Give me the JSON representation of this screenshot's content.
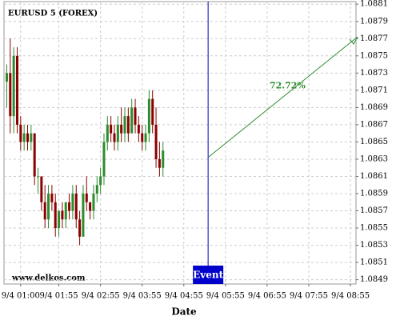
{
  "chart_data": {
    "type": "candlestick",
    "title": "EURUSD 5 (FOREX)",
    "x_label": "Date",
    "watermark": "www.delkos.com",
    "x": [
      40,
      45,
      50,
      55,
      60,
      65,
      70,
      75,
      80,
      85,
      90,
      95,
      100,
      105,
      110,
      115,
      120,
      125,
      130,
      135,
      140,
      145,
      150,
      155,
      160,
      165,
      170,
      175,
      180,
      185,
      190,
      195,
      200,
      205,
      210,
      215,
      220,
      225,
      230,
      235,
      240,
      245,
      250,
      255,
      260,
      265
    ],
    "open": [
      1.0872,
      1.0873,
      1.0868,
      1.0875,
      1.0867,
      1.0865,
      1.0866,
      1.0865,
      1.0866,
      1.0861,
      1.0861,
      1.0858,
      1.0856,
      1.0859,
      1.0858,
      1.0855,
      1.0857,
      1.0856,
      1.0858,
      1.0857,
      1.0859,
      1.0856,
      1.0854,
      1.0859,
      1.0858,
      1.0857,
      1.0859,
      1.086,
      1.0861,
      1.0865,
      1.0867,
      1.0866,
      1.0865,
      1.0867,
      1.0866,
      1.0868,
      1.0866,
      1.0869,
      1.0867,
      1.0866,
      1.0865,
      1.0866,
      1.087,
      1.0867,
      1.0863,
      1.0862
    ],
    "high": [
      1.0874,
      1.0877,
      1.0876,
      1.0876,
      1.0868,
      1.0867,
      1.0867,
      1.0867,
      1.0866,
      1.0862,
      1.0861,
      1.086,
      1.086,
      1.086,
      1.0859,
      1.0857,
      1.0858,
      1.0858,
      1.0859,
      1.086,
      1.086,
      1.0857,
      1.086,
      1.0861,
      1.0858,
      1.086,
      1.0861,
      1.0862,
      1.0866,
      1.0868,
      1.0868,
      1.0867,
      1.0868,
      1.0869,
      1.0869,
      1.0869,
      1.087,
      1.087,
      1.0868,
      1.0867,
      1.0867,
      1.0871,
      1.0871,
      1.0869,
      1.0865,
      1.0865
    ],
    "low": [
      1.0869,
      1.0866,
      1.0866,
      1.0866,
      1.0864,
      1.0864,
      1.0864,
      1.0864,
      1.086,
      1.0859,
      1.0857,
      1.0855,
      1.0855,
      1.0857,
      1.0854,
      1.0854,
      1.0855,
      1.0855,
      1.0856,
      1.0856,
      1.0855,
      1.0853,
      1.0854,
      1.0857,
      1.0856,
      1.0856,
      1.0858,
      1.0859,
      1.086,
      1.0864,
      1.0865,
      1.0864,
      1.0864,
      1.0865,
      1.0865,
      1.0865,
      1.0866,
      1.0866,
      1.0865,
      1.0864,
      1.0864,
      1.0865,
      1.0866,
      1.0862,
      1.0861,
      1.0861
    ],
    "close": [
      1.0873,
      1.0868,
      1.0875,
      1.0867,
      1.0865,
      1.0866,
      1.0865,
      1.0866,
      1.0861,
      1.0861,
      1.0858,
      1.0856,
      1.0859,
      1.0858,
      1.0855,
      1.0857,
      1.0856,
      1.0858,
      1.0857,
      1.0859,
      1.0856,
      1.0854,
      1.0859,
      1.0858,
      1.0857,
      1.0859,
      1.086,
      1.0861,
      1.0865,
      1.0867,
      1.0866,
      1.0865,
      1.0867,
      1.0866,
      1.0868,
      1.0866,
      1.0869,
      1.0867,
      1.0866,
      1.0865,
      1.0866,
      1.087,
      1.0867,
      1.0863,
      1.0862,
      1.0864
    ],
    "up_color": "#2e8b2e",
    "down_color": "#8b0000",
    "xlim": [
      36,
      543
    ],
    "xticks": [
      {
        "value": 60,
        "label": "9/4 01:00"
      },
      {
        "value": 115,
        "label": "9/4 01:55"
      },
      {
        "value": 175,
        "label": "9/4 02:55"
      },
      {
        "value": 235,
        "label": "9/4 03:55"
      },
      {
        "value": 295,
        "label": "9/4 04:55"
      },
      {
        "value": 355,
        "label": "9/4 05:55"
      },
      {
        "value": 415,
        "label": "9/4 06:55"
      },
      {
        "value": 475,
        "label": "9/4 07:55"
      },
      {
        "value": 535,
        "label": "9/4 08:55"
      }
    ],
    "ylim": [
      1.08485,
      1.08813
    ],
    "yticks": [
      1.0849,
      1.0851,
      1.0853,
      1.0855,
      1.0857,
      1.0859,
      1.0861,
      1.0863,
      1.0865,
      1.0867,
      1.0869,
      1.0871,
      1.0873,
      1.0875,
      1.0877,
      1.0879,
      1.0881
    ],
    "grid": true,
    "event": {
      "x": 330,
      "label": "Event",
      "color": "#0000cc"
    },
    "forecast": {
      "x": [
        330,
        545
      ],
      "y": [
        1.08632,
        1.08772
      ],
      "label": "72.72%",
      "color": "#2e8b2e"
    }
  }
}
